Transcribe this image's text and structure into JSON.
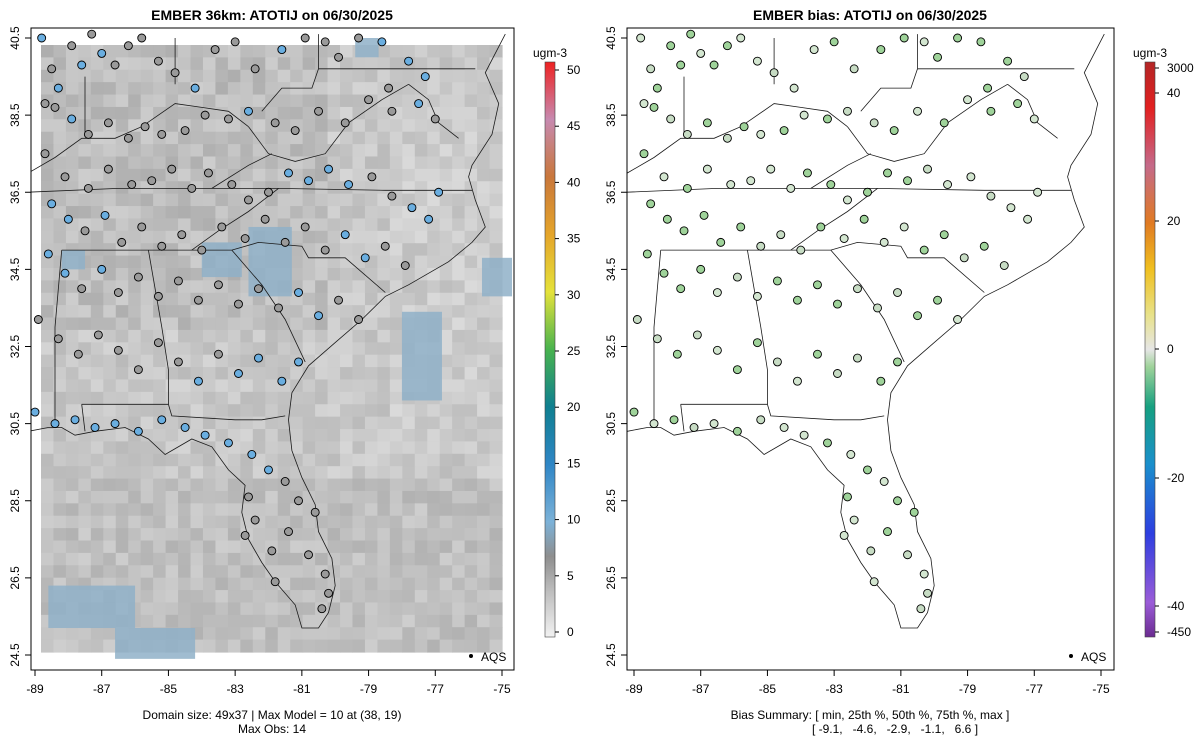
{
  "left_panel": {
    "title": "EMBER 36km: ATOTIJ on 06/30/2025",
    "x_ticks": [
      "-89",
      "-87",
      "-85",
      "-83",
      "-81",
      "-79",
      "-77",
      "-75"
    ],
    "y_ticks": [
      "24.5",
      "26.5",
      "28.5",
      "30.5",
      "32.5",
      "34.5",
      "36.5",
      "38.5",
      "40.5"
    ],
    "legend_label": "AQS",
    "colorbar": {
      "unit": "ugm-3",
      "ticks": [
        "0",
        "5",
        "10",
        "15",
        "20",
        "25",
        "30",
        "35",
        "40",
        "45",
        "50"
      ]
    },
    "caption_line1": "Domain size: 49x37 | Max Model = 10 at (38, 19)",
    "caption_line2": "Max Obs: 14"
  },
  "right_panel": {
    "title": "EMBER bias: ATOTIJ on 06/30/2025",
    "x_ticks": [
      "-89",
      "-87",
      "-85",
      "-83",
      "-81",
      "-79",
      "-77",
      "-75"
    ],
    "y_ticks": [
      "24.5",
      "26.5",
      "28.5",
      "30.5",
      "32.5",
      "34.5",
      "36.5",
      "38.5",
      "40.5"
    ],
    "legend_label": "AQS",
    "colorbar": {
      "unit": "ugm-3",
      "ticks": [
        "-450",
        "-40",
        "-20",
        "0",
        "20",
        "40",
        "3000"
      ]
    },
    "caption_line1": "Bias Summary: [ min, 25th %, 50th %, 75th %, max ]",
    "caption_line2": "[ -9.1,   -4.6,   -2.9,   -1.1,   6.6 ]"
  },
  "colors": {
    "grid_light": "#d6d6d6",
    "grid_mid": "#b4b4b4",
    "grid_dark": "#a2a2a2",
    "grid_blue": "#8fb0c8",
    "obs_gray": "#9a9a9a",
    "obs_blue": "#6aaee0",
    "bias_green": "#9fd39a",
    "bias_pale": "#d3e6d0"
  },
  "map_data": {
    "lon_range": [
      -89.2,
      -74.6
    ],
    "lat_range": [
      24.5,
      40.8
    ],
    "sites": [
      [
        -88.8,
        40.5
      ],
      [
        -88.5,
        39.7
      ],
      [
        -88.7,
        38.8
      ],
      [
        -88.3,
        39.2
      ],
      [
        -87.9,
        40.3
      ],
      [
        -87.6,
        39.8
      ],
      [
        -87.3,
        40.6
      ],
      [
        -87.0,
        40.1
      ],
      [
        -86.6,
        39.8
      ],
      [
        -86.2,
        40.3
      ],
      [
        -85.8,
        40.5
      ],
      [
        -85.3,
        39.9
      ],
      [
        -84.8,
        39.6
      ],
      [
        -84.2,
        39.2
      ],
      [
        -83.6,
        40.2
      ],
      [
        -83.0,
        40.4
      ],
      [
        -82.4,
        39.7
      ],
      [
        -81.6,
        40.2
      ],
      [
        -80.9,
        40.5
      ],
      [
        -80.3,
        40.4
      ],
      [
        -79.9,
        40.0
      ],
      [
        -79.3,
        40.5
      ],
      [
        -78.6,
        40.4
      ],
      [
        -77.8,
        39.9
      ],
      [
        -77.3,
        39.5
      ],
      [
        -78.4,
        39.2
      ],
      [
        -88.4,
        38.7
      ],
      [
        -87.9,
        38.4
      ],
      [
        -87.4,
        38.0
      ],
      [
        -86.8,
        38.3
      ],
      [
        -86.2,
        37.9
      ],
      [
        -85.7,
        38.2
      ],
      [
        -85.2,
        38.0
      ],
      [
        -84.5,
        38.1
      ],
      [
        -83.9,
        38.5
      ],
      [
        -83.2,
        38.4
      ],
      [
        -82.6,
        38.6
      ],
      [
        -81.8,
        38.3
      ],
      [
        -81.2,
        38.1
      ],
      [
        -80.5,
        38.6
      ],
      [
        -79.7,
        38.3
      ],
      [
        -79.0,
        38.9
      ],
      [
        -78.3,
        38.6
      ],
      [
        -77.5,
        38.8
      ],
      [
        -77.0,
        38.4
      ],
      [
        -88.7,
        37.5
      ],
      [
        -88.1,
        36.9
      ],
      [
        -87.4,
        36.6
      ],
      [
        -86.8,
        37.1
      ],
      [
        -86.1,
        36.7
      ],
      [
        -85.5,
        36.8
      ],
      [
        -84.9,
        37.1
      ],
      [
        -84.3,
        36.6
      ],
      [
        -83.8,
        37.0
      ],
      [
        -83.1,
        36.7
      ],
      [
        -82.6,
        36.3
      ],
      [
        -82.0,
        36.5
      ],
      [
        -81.4,
        37.0
      ],
      [
        -80.8,
        36.8
      ],
      [
        -80.2,
        37.1
      ],
      [
        -79.6,
        36.7
      ],
      [
        -78.9,
        36.9
      ],
      [
        -78.3,
        36.4
      ],
      [
        -77.7,
        36.1
      ],
      [
        -77.2,
        35.8
      ],
      [
        -76.9,
        36.5
      ],
      [
        -88.5,
        36.2
      ],
      [
        -88.0,
        35.8
      ],
      [
        -87.5,
        35.5
      ],
      [
        -86.9,
        35.9
      ],
      [
        -86.4,
        35.2
      ],
      [
        -85.8,
        35.6
      ],
      [
        -85.2,
        35.1
      ],
      [
        -84.6,
        35.4
      ],
      [
        -84.0,
        35.0
      ],
      [
        -83.4,
        35.6
      ],
      [
        -82.7,
        35.3
      ],
      [
        -82.1,
        35.8
      ],
      [
        -81.5,
        35.2
      ],
      [
        -80.9,
        35.6
      ],
      [
        -80.3,
        35.0
      ],
      [
        -79.7,
        35.4
      ],
      [
        -79.1,
        34.8
      ],
      [
        -78.5,
        35.1
      ],
      [
        -77.9,
        34.6
      ],
      [
        -88.6,
        34.9
      ],
      [
        -88.1,
        34.4
      ],
      [
        -87.6,
        34.0
      ],
      [
        -87.0,
        34.5
      ],
      [
        -86.5,
        33.9
      ],
      [
        -85.9,
        34.3
      ],
      [
        -85.3,
        33.8
      ],
      [
        -84.7,
        34.2
      ],
      [
        -84.1,
        33.7
      ],
      [
        -83.5,
        34.1
      ],
      [
        -82.9,
        33.6
      ],
      [
        -82.3,
        34.0
      ],
      [
        -81.7,
        33.5
      ],
      [
        -81.1,
        33.9
      ],
      [
        -80.5,
        33.3
      ],
      [
        -79.9,
        33.7
      ],
      [
        -79.3,
        33.2
      ],
      [
        -88.9,
        33.2
      ],
      [
        -88.3,
        32.7
      ],
      [
        -87.7,
        32.3
      ],
      [
        -87.1,
        32.8
      ],
      [
        -86.5,
        32.4
      ],
      [
        -85.9,
        31.9
      ],
      [
        -85.3,
        32.6
      ],
      [
        -84.7,
        32.1
      ],
      [
        -84.1,
        31.6
      ],
      [
        -83.5,
        32.3
      ],
      [
        -82.9,
        31.8
      ],
      [
        -82.3,
        32.2
      ],
      [
        -81.6,
        31.6
      ],
      [
        -81.1,
        32.1
      ],
      [
        -89.0,
        30.8
      ],
      [
        -88.4,
        30.5
      ],
      [
        -87.8,
        30.6
      ],
      [
        -87.2,
        30.4
      ],
      [
        -86.6,
        30.5
      ],
      [
        -85.9,
        30.3
      ],
      [
        -85.2,
        30.6
      ],
      [
        -84.5,
        30.4
      ],
      [
        -83.9,
        30.2
      ],
      [
        -83.2,
        30.0
      ],
      [
        -82.5,
        29.7
      ],
      [
        -82.0,
        29.3
      ],
      [
        -81.5,
        29.0
      ],
      [
        -81.1,
        28.5
      ],
      [
        -82.6,
        28.6
      ],
      [
        -82.4,
        28.0
      ],
      [
        -82.7,
        27.6
      ],
      [
        -81.9,
        27.2
      ],
      [
        -81.4,
        27.7
      ],
      [
        -80.8,
        27.1
      ],
      [
        -80.3,
        26.6
      ],
      [
        -80.2,
        26.1
      ],
      [
        -80.4,
        25.7
      ],
      [
        -81.8,
        26.4
      ],
      [
        -80.6,
        28.2
      ]
    ],
    "blue_sites": [
      0,
      3,
      5,
      7,
      13,
      17,
      22,
      23,
      24,
      27,
      36,
      43,
      57,
      58,
      59,
      60,
      63,
      64,
      65,
      66,
      67,
      69,
      81,
      82,
      85,
      86,
      88,
      98,
      99,
      110,
      112,
      113,
      114,
      115,
      116,
      117,
      118,
      119,
      120,
      121,
      122,
      123,
      124,
      125,
      126,
      127
    ],
    "blue_patches": [
      [
        -82.6,
        35.6,
        1.3,
        1.8
      ],
      [
        -84.0,
        35.2,
        1.2,
        0.9
      ],
      [
        -79.4,
        40.5,
        0.7,
        0.5
      ],
      [
        -88.2,
        35.0,
        0.7,
        0.5
      ],
      [
        -78.0,
        33.4,
        1.2,
        2.3
      ],
      [
        -75.6,
        34.8,
        0.9,
        1.0
      ],
      [
        -88.6,
        26.3,
        2.6,
        1.1
      ],
      [
        -86.6,
        25.2,
        2.4,
        0.8
      ]
    ]
  }
}
